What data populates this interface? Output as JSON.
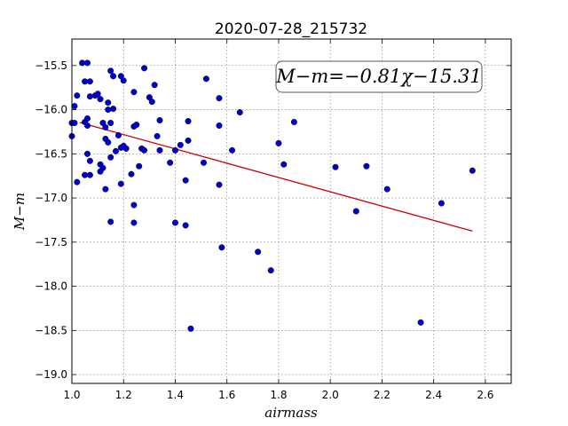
{
  "chart_data": {
    "type": "scatter",
    "title": "2020-07-28_215732",
    "xlabel": "airmass",
    "ylabel": "M−m",
    "xlim": [
      1.0,
      2.7
    ],
    "ylim": [
      -19.1,
      -15.2
    ],
    "y_inverted": true,
    "grid": true,
    "x_ticks": [
      1.0,
      1.2,
      1.4,
      1.6,
      1.8,
      2.0,
      2.2,
      2.4,
      2.6
    ],
    "x_tick_labels": [
      "1.0",
      "1.2",
      "1.4",
      "1.6",
      "1.8",
      "2.0",
      "2.2",
      "2.4",
      "2.6"
    ],
    "y_ticks": [
      -15.5,
      -16.0,
      -16.5,
      -17.0,
      -17.5,
      -18.0,
      -18.5,
      -19.0
    ],
    "y_tick_labels": [
      "−15.5",
      "−16.0",
      "−16.5",
      "−17.0",
      "−17.5",
      "−18.0",
      "−18.5",
      "−19.0"
    ],
    "annotation": "M−m=−0.81χ−15.31",
    "marker_color": "#0000cc",
    "fit_color": "#cc0000",
    "fit": {
      "slope": -0.81,
      "intercept": -15.31,
      "x_range": [
        1.03,
        2.55
      ]
    },
    "points": [
      [
        1.04,
        -15.47
      ],
      [
        1.06,
        -15.47
      ],
      [
        1.05,
        -15.68
      ],
      [
        1.07,
        -15.68
      ],
      [
        1.02,
        -15.84
      ],
      [
        1.07,
        -15.85
      ],
      [
        1.09,
        -15.84
      ],
      [
        1.1,
        -15.82
      ],
      [
        1.01,
        -15.96
      ],
      [
        1.06,
        -16.1
      ],
      [
        1.05,
        -16.14
      ],
      [
        1.0,
        -16.15
      ],
      [
        1.01,
        -16.15
      ],
      [
        1.06,
        -16.18
      ],
      [
        1.0,
        -16.3
      ],
      [
        1.06,
        -16.5
      ],
      [
        1.07,
        -16.58
      ],
      [
        1.05,
        -16.74
      ],
      [
        1.07,
        -16.74
      ],
      [
        1.02,
        -16.82
      ],
      [
        1.11,
        -15.88
      ],
      [
        1.14,
        -15.92
      ],
      [
        1.14,
        -16.0
      ],
      [
        1.16,
        -15.99
      ],
      [
        1.15,
        -15.56
      ],
      [
        1.16,
        -15.62
      ],
      [
        1.19,
        -15.62
      ],
      [
        1.2,
        -15.67
      ],
      [
        1.12,
        -16.15
      ],
      [
        1.13,
        -16.2
      ],
      [
        1.15,
        -16.15
      ],
      [
        1.13,
        -16.33
      ],
      [
        1.14,
        -16.37
      ],
      [
        1.18,
        -16.29
      ],
      [
        1.19,
        -16.43
      ],
      [
        1.2,
        -16.41
      ],
      [
        1.21,
        -16.44
      ],
      [
        1.17,
        -16.47
      ],
      [
        1.15,
        -16.54
      ],
      [
        1.11,
        -16.62
      ],
      [
        1.12,
        -16.66
      ],
      [
        1.11,
        -16.7
      ],
      [
        1.13,
        -16.9
      ],
      [
        1.19,
        -16.84
      ],
      [
        1.15,
        -17.27
      ],
      [
        1.24,
        -15.8
      ],
      [
        1.24,
        -16.19
      ],
      [
        1.25,
        -16.17
      ],
      [
        1.27,
        -16.44
      ],
      [
        1.28,
        -16.46
      ],
      [
        1.26,
        -16.64
      ],
      [
        1.23,
        -16.73
      ],
      [
        1.24,
        -17.08
      ],
      [
        1.24,
        -17.28
      ],
      [
        1.28,
        -15.53
      ],
      [
        1.3,
        -15.86
      ],
      [
        1.31,
        -15.91
      ],
      [
        1.32,
        -15.72
      ],
      [
        1.34,
        -16.12
      ],
      [
        1.33,
        -16.3
      ],
      [
        1.34,
        -16.46
      ],
      [
        1.38,
        -16.6
      ],
      [
        1.4,
        -16.46
      ],
      [
        1.42,
        -16.4
      ],
      [
        1.45,
        -16.13
      ],
      [
        1.45,
        -16.35
      ],
      [
        1.44,
        -16.8
      ],
      [
        1.4,
        -17.28
      ],
      [
        1.44,
        -17.31
      ],
      [
        1.46,
        -18.48
      ],
      [
        1.52,
        -15.65
      ],
      [
        1.51,
        -16.6
      ],
      [
        1.57,
        -15.87
      ],
      [
        1.57,
        -16.18
      ],
      [
        1.57,
        -16.85
      ],
      [
        1.58,
        -17.56
      ],
      [
        1.62,
        -16.46
      ],
      [
        1.65,
        -16.03
      ],
      [
        1.72,
        -17.61
      ],
      [
        1.77,
        -17.82
      ],
      [
        1.8,
        -16.38
      ],
      [
        1.82,
        -16.62
      ],
      [
        1.86,
        -16.14
      ],
      [
        2.02,
        -16.65
      ],
      [
        2.1,
        -17.15
      ],
      [
        2.14,
        -16.64
      ],
      [
        2.22,
        -16.9
      ],
      [
        2.35,
        -18.41
      ],
      [
        2.43,
        -17.06
      ],
      [
        2.55,
        -16.69
      ]
    ]
  }
}
